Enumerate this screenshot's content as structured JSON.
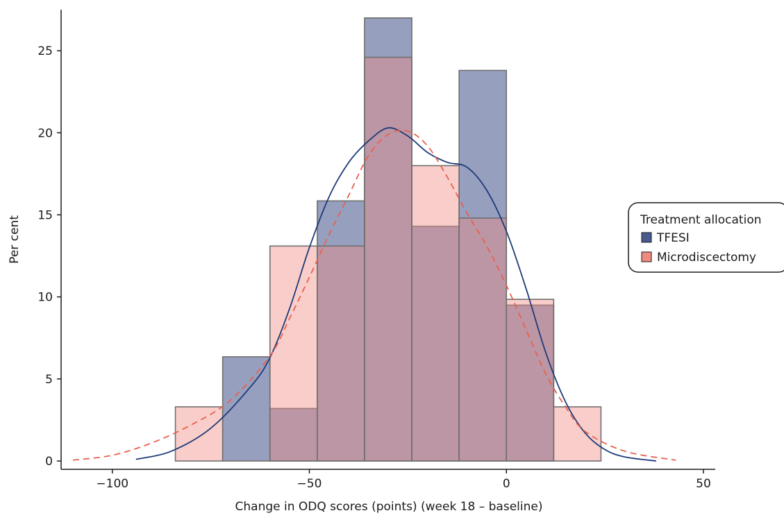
{
  "chart_data": {
    "type": "bar",
    "subtype": "overlaid-histogram-with-density",
    "xlabel": "Change in ODQ scores (points) (week 18 – baseline)",
    "ylabel": "Per cent",
    "xlim": [
      -113,
      53
    ],
    "ylim": [
      0,
      27.5
    ],
    "xticks": [
      -100,
      -50,
      0,
      50
    ],
    "xtick_labels": [
      "−100",
      "−50",
      "0",
      "50"
    ],
    "yticks": [
      0,
      5,
      10,
      15,
      20,
      25
    ],
    "ytick_labels": [
      "0",
      "5",
      "10",
      "15",
      "20",
      "25"
    ],
    "grid": false,
    "legend": {
      "title": "Treatment allocation",
      "position": "right",
      "entries": [
        "TFESI",
        "Microdiscectomy"
      ]
    },
    "colors": {
      "tfesi_fill": "#4a5a8f",
      "tfesi_line": "#1f3a78",
      "micro_fill": "#f08a80",
      "micro_line": "#e8604e",
      "bar_edge": "#6e6e6e",
      "axis": "#1a1a1a"
    },
    "series": [
      {
        "name": "TFESI",
        "bins": [
          [
            -72,
            -60
          ],
          [
            -60,
            -48
          ],
          [
            -48,
            -36
          ],
          [
            -36,
            -24
          ],
          [
            -24,
            -12
          ],
          [
            -12,
            0
          ],
          [
            0,
            12
          ]
        ],
        "values": [
          6.35,
          3.2,
          15.85,
          27.0,
          14.3,
          23.8,
          9.5
        ],
        "density": [
          [
            -94,
            0.1
          ],
          [
            -85,
            0.6
          ],
          [
            -75,
            2.0
          ],
          [
            -65,
            4.5
          ],
          [
            -60,
            6.3
          ],
          [
            -55,
            9.3
          ],
          [
            -50,
            13.0
          ],
          [
            -45,
            16.1
          ],
          [
            -40,
            18.2
          ],
          [
            -35,
            19.5
          ],
          [
            -30,
            20.3
          ],
          [
            -25,
            19.8
          ],
          [
            -20,
            18.8
          ],
          [
            -15,
            18.2
          ],
          [
            -10,
            17.9
          ],
          [
            -5,
            16.5
          ],
          [
            0,
            14.0
          ],
          [
            5,
            10.5
          ],
          [
            10,
            6.6
          ],
          [
            15,
            3.6
          ],
          [
            20,
            1.7
          ],
          [
            25,
            0.7
          ],
          [
            30,
            0.25
          ],
          [
            38,
            0.0
          ]
        ]
      },
      {
        "name": "Microdiscectomy",
        "bins": [
          [
            -84,
            -72
          ],
          [
            -72,
            -60
          ],
          [
            -60,
            -48
          ],
          [
            -48,
            -36
          ],
          [
            -36,
            -24
          ],
          [
            -24,
            -12
          ],
          [
            -12,
            0
          ],
          [
            0,
            12
          ],
          [
            12,
            24
          ]
        ],
        "values": [
          3.3,
          0,
          13.1,
          13.1,
          24.6,
          18.0,
          14.8,
          9.85,
          3.3
        ],
        "density": [
          [
            -110,
            0.05
          ],
          [
            -100,
            0.35
          ],
          [
            -90,
            1.1
          ],
          [
            -80,
            2.2
          ],
          [
            -70,
            3.7
          ],
          [
            -60,
            6.4
          ],
          [
            -55,
            8.7
          ],
          [
            -50,
            11.2
          ],
          [
            -45,
            13.8
          ],
          [
            -40,
            16.2
          ],
          [
            -35,
            18.6
          ],
          [
            -30,
            19.9
          ],
          [
            -25,
            20.1
          ],
          [
            -20,
            19.2
          ],
          [
            -15,
            17.3
          ],
          [
            -10,
            15.1
          ],
          [
            -5,
            13.1
          ],
          [
            0,
            10.7
          ],
          [
            5,
            8.0
          ],
          [
            10,
            5.3
          ],
          [
            15,
            3.3
          ],
          [
            20,
            1.8
          ],
          [
            30,
            0.6
          ],
          [
            43,
            0.05
          ]
        ]
      }
    ]
  }
}
